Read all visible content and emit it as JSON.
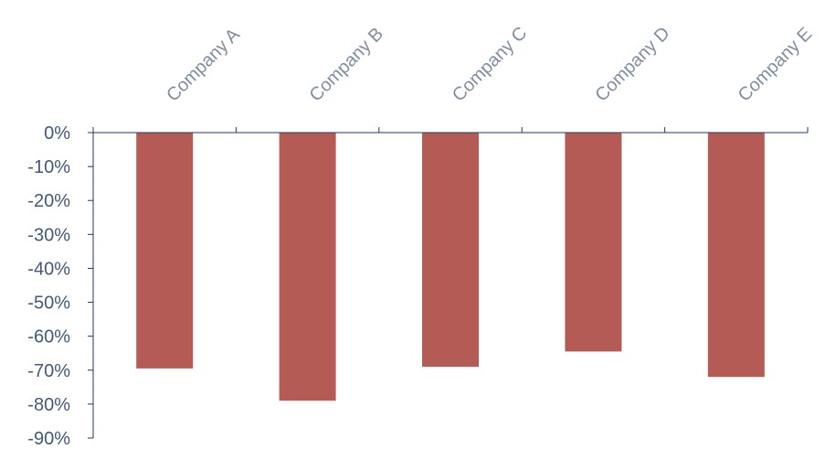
{
  "chart_data": {
    "type": "bar",
    "categories": [
      "Company A",
      "Company B",
      "Company C",
      "Company D",
      "Company E"
    ],
    "values": [
      -69.5,
      -79,
      -69,
      -64.5,
      -72
    ],
    "ylim": [
      -90,
      0
    ],
    "yticks": [
      0,
      -10,
      -20,
      -30,
      -40,
      -50,
      -60,
      -70,
      -80,
      -90
    ],
    "ytick_labels": [
      "0%",
      "-10%",
      "-20%",
      "-30%",
      "-40%",
      "-50%",
      "-60%",
      "-70%",
      "-80%",
      "-90%"
    ],
    "category_axis_position": "top",
    "grid": false,
    "title": "",
    "xlabel": "",
    "ylabel": ""
  },
  "colors": {
    "bar": "#b55b55",
    "axis": "#1f3864",
    "tick_text": "#3f5a7a",
    "category_text": "#7f8ea1"
  }
}
